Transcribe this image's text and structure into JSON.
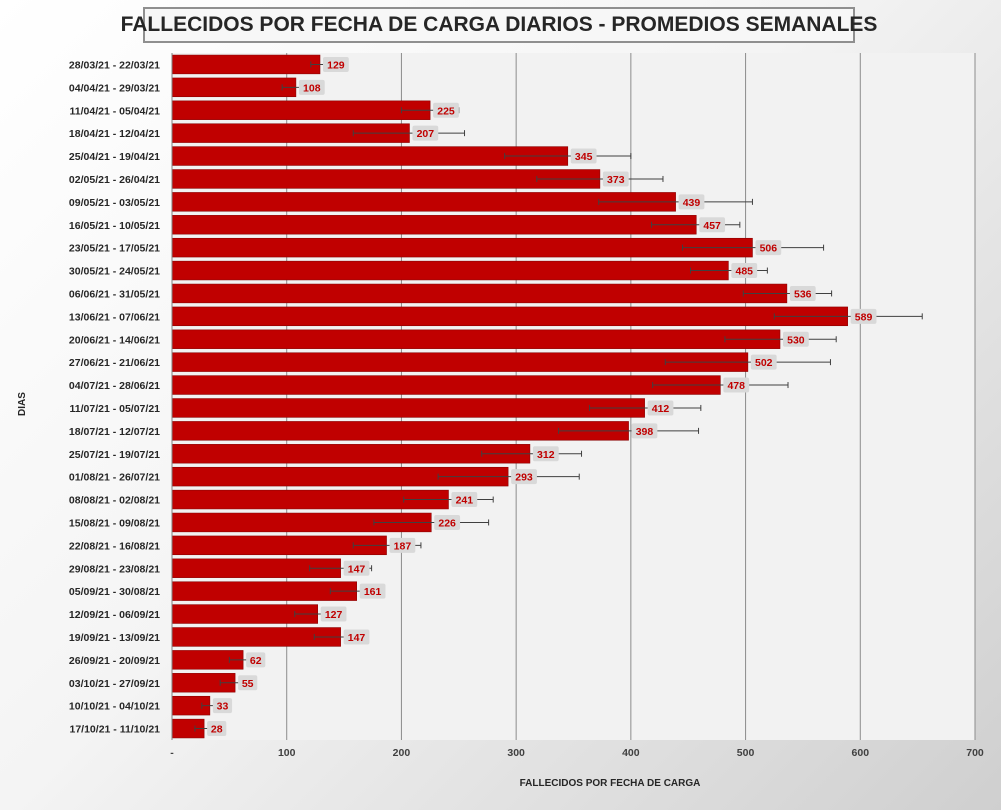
{
  "chart_data": {
    "type": "bar",
    "orientation": "horizontal",
    "title": "FALLECIDOS POR FECHA DE CARGA DIARIOS - PROMEDIOS SEMANALES",
    "xlabel": "FALLECIDOS POR FECHA DE CARGA",
    "ylabel": "DIAS",
    "xlim": [
      0,
      700
    ],
    "xticks": [
      "-",
      "100",
      "200",
      "300",
      "400",
      "500",
      "600",
      "700"
    ],
    "grid": true,
    "legend": "none",
    "bar_color": "#c00000",
    "label_color": "#c00000",
    "categories": [
      "28/03/21 - 22/03/21",
      "04/04/21 - 29/03/21",
      "11/04/21 - 05/04/21",
      "18/04/21 - 12/04/21",
      "25/04/21 - 19/04/21",
      "02/05/21 - 26/04/21",
      "09/05/21 - 03/05/21",
      "16/05/21 - 10/05/21",
      "23/05/21 - 17/05/21",
      "30/05/21 - 24/05/21",
      "06/06/21 - 31/05/21",
      "13/06/21 - 07/06/21",
      "20/06/21 - 14/06/21",
      "27/06/21 - 21/06/21",
      "04/07/21 - 28/06/21",
      "11/07/21 - 05/07/21",
      "18/07/21 - 12/07/21",
      "25/07/21 - 19/07/21",
      "01/08/21 - 26/07/21",
      "08/08/21 - 02/08/21",
      "15/08/21 - 09/08/21",
      "22/08/21 - 16/08/21",
      "29/08/21 - 23/08/21",
      "05/09/21 - 30/08/21",
      "12/09/21 - 06/09/21",
      "19/09/21 - 13/09/21",
      "26/09/21 - 20/09/21",
      "03/10/21 - 27/09/21",
      "10/10/21 - 04/10/21",
      "17/10/21 - 11/10/21"
    ],
    "values": [
      129,
      108,
      225,
      207,
      345,
      373,
      439,
      457,
      506,
      485,
      536,
      589,
      530,
      502,
      478,
      412,
      398,
      312,
      293,
      241,
      226,
      187,
      147,
      161,
      127,
      147,
      62,
      55,
      33,
      28
    ],
    "error_bars": [
      [
        121,
        137
      ],
      [
        96,
        121
      ],
      [
        200,
        250
      ],
      [
        158,
        255
      ],
      [
        290,
        400
      ],
      [
        318,
        428
      ],
      [
        372,
        506
      ],
      [
        418,
        495
      ],
      [
        445,
        568
      ],
      [
        452,
        519
      ],
      [
        498,
        575
      ],
      [
        525,
        654
      ],
      [
        482,
        579
      ],
      [
        430,
        574
      ],
      [
        419,
        537
      ],
      [
        364,
        461
      ],
      [
        337,
        459
      ],
      [
        270,
        357
      ],
      [
        232,
        355
      ],
      [
        202,
        280
      ],
      [
        176,
        276
      ],
      [
        158,
        217
      ],
      [
        120,
        174
      ],
      [
        138,
        183
      ],
      [
        107,
        147
      ],
      [
        124,
        170
      ],
      [
        50,
        75
      ],
      [
        42,
        68
      ],
      [
        26,
        40
      ],
      [
        20,
        35
      ]
    ]
  }
}
